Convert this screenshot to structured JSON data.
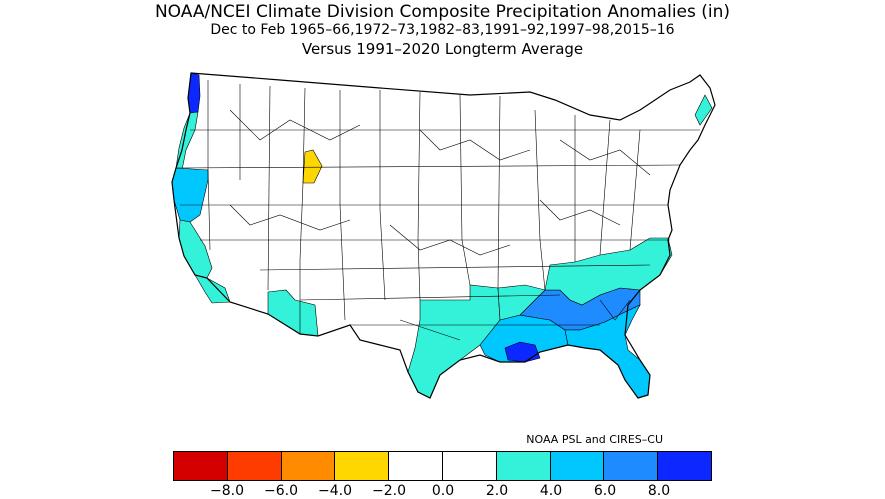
{
  "title": {
    "line1": "NOAA/NCEI Climate Division Composite Precipitation Anomalies (in)",
    "line2": "Dec to Feb  1965–66,1972–73,1982–83,1991–92,1997–98,2015–16",
    "line3": "Versus 1991–2020 Longterm Average"
  },
  "credit": "NOAA PSL and CIRES–CU",
  "legend": {
    "colors": [
      "#d40000",
      "#ff3c00",
      "#ff8c00",
      "#ffd700",
      "#ffffff",
      "#ffffff",
      "#33f2d9",
      "#00c8ff",
      "#1e8cff",
      "#0a28ff"
    ],
    "ticks": [
      "−8.0",
      "−6.0",
      "−4.0",
      "−2.0",
      "0.0",
      "2.0",
      "4.0",
      "6.0",
      "8.0"
    ]
  },
  "regions": [
    {
      "name": "washington-coast",
      "category": "8.0+",
      "color": "#0a28ff"
    },
    {
      "name": "oregon-coast",
      "category": "2.0–4.0",
      "color": "#33f2d9"
    },
    {
      "name": "northern-california",
      "category": "4.0–6.0",
      "color": "#00c8ff"
    },
    {
      "name": "central-california-coast",
      "category": "2.0–4.0",
      "color": "#33f2d9"
    },
    {
      "name": "southern-california",
      "category": "2.0–4.0",
      "color": "#33f2d9"
    },
    {
      "name": "southern-arizona",
      "category": "2.0–4.0",
      "color": "#33f2d9"
    },
    {
      "name": "idaho-montana-division",
      "category": "−2.0 to −4.0",
      "color": "#ffd700"
    },
    {
      "name": "texas-southeast",
      "category": "2.0–4.0",
      "color": "#33f2d9"
    },
    {
      "name": "gulf-coast",
      "category": "4.0–6.0",
      "color": "#00c8ff"
    },
    {
      "name": "southeast-interior",
      "category": "6.0–8.0",
      "color": "#1e8cff"
    },
    {
      "name": "southeast-lowlands",
      "category": "4.0–6.0",
      "color": "#00c8ff"
    },
    {
      "name": "louisiana-coast",
      "category": "8.0+",
      "color": "#0a28ff"
    },
    {
      "name": "florida",
      "category": "4.0–6.0",
      "color": "#00c8ff"
    },
    {
      "name": "carolinas-georgia",
      "category": "2.0–4.0",
      "color": "#33f2d9"
    },
    {
      "name": "maine-coast",
      "category": "2.0–4.0",
      "color": "#33f2d9"
    }
  ]
}
